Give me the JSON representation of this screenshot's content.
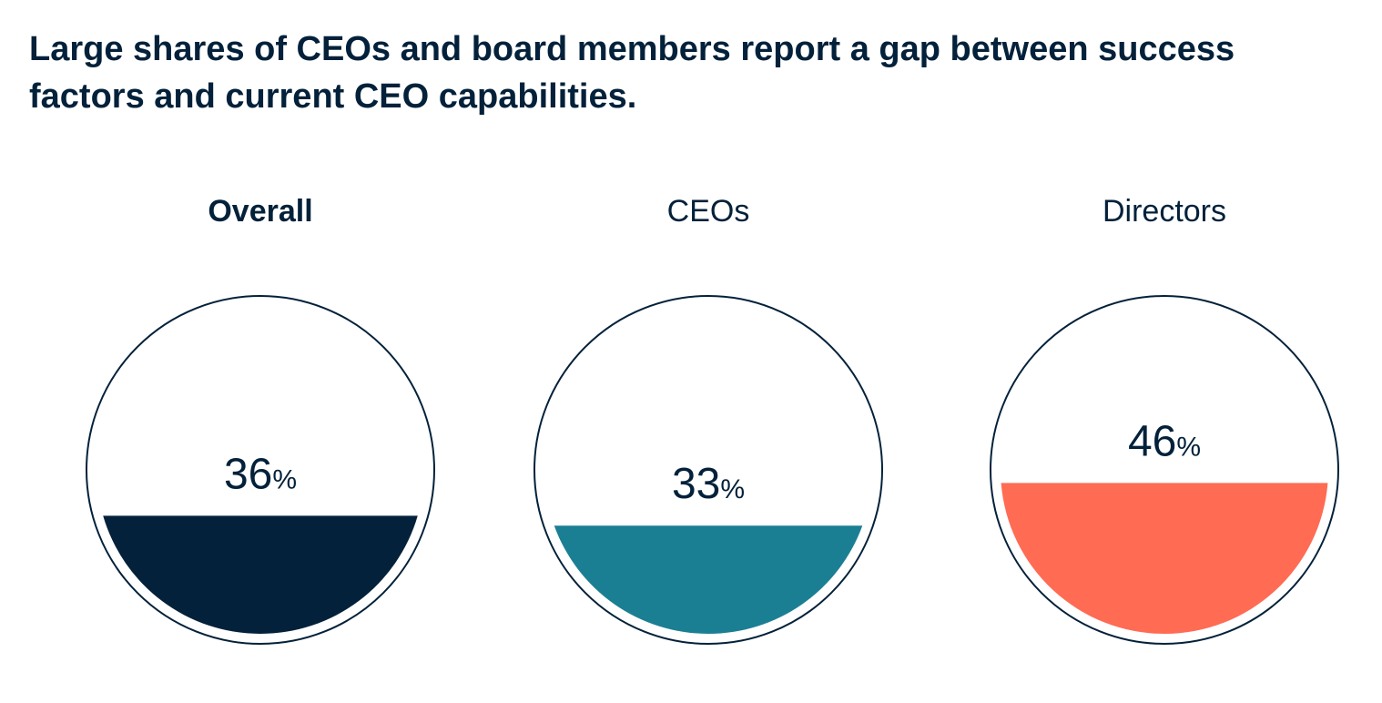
{
  "chart_data": {
    "type": "pie",
    "title": "Large shares of CEOs and board members report a gap between success factors and current CEO capabilities.",
    "categories": [
      "Overall",
      "CEOs",
      "Directors"
    ],
    "values": [
      36,
      33,
      46
    ],
    "value_labels": [
      "36",
      "33",
      "46"
    ],
    "unit": "%",
    "colors": [
      "#03213a",
      "#1b7f94",
      "#ff6b53"
    ],
    "outline_color": "#03213a",
    "emphasized_category": "Overall"
  }
}
